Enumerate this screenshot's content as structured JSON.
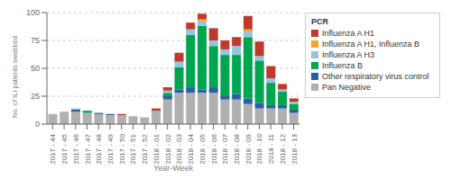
{
  "chart_data": {
    "type": "bar",
    "stacked": true,
    "xlabel": "Year-Week",
    "ylabel": "No. of ILI patients swabbed",
    "legend_title": "PCR",
    "legend": "right",
    "grid": true,
    "ylim": [
      0,
      100
    ],
    "yticks": [
      0,
      25,
      50,
      75,
      100
    ],
    "categories": [
      "2017 - 44",
      "2017 - 45",
      "2017 - 46",
      "2017 - 47",
      "2017 - 48",
      "2017 - 49",
      "2017 - 50",
      "2017 - 51",
      "2017 - 52",
      "2018 - 01",
      "2018 - 02",
      "2018 - 03",
      "2018 - 04",
      "2018 - 05",
      "2018 - 06",
      "2018 - 07",
      "2018 - 08",
      "2018 - 09",
      "2018 - 10",
      "2018 - 11",
      "2018 - 12",
      "2018 - 13"
    ],
    "series": [
      {
        "name": "Pan Negative",
        "color": "#b0b0b0",
        "values": [
          9,
          11,
          11,
          10,
          9,
          8,
          8,
          7,
          6,
          12,
          22,
          28,
          28,
          28,
          28,
          22,
          22,
          18,
          14,
          14,
          14,
          10
        ]
      },
      {
        "name": "Other respiratory virus control",
        "color": "#2b5fa5",
        "values": [
          0,
          0,
          2,
          0,
          1,
          1,
          0,
          0,
          0,
          0,
          3,
          3,
          5,
          3,
          5,
          3,
          5,
          5,
          5,
          3,
          3,
          3
        ]
      },
      {
        "name": "Influenza B",
        "color": "#00a550",
        "values": [
          0,
          0,
          0,
          2,
          0,
          0,
          0,
          0,
          0,
          0,
          3,
          20,
          47,
          57,
          37,
          37,
          35,
          55,
          38,
          20,
          12,
          5
        ]
      },
      {
        "name": "Influenza A H3",
        "color": "#92c5de",
        "values": [
          0,
          0,
          1,
          0,
          0,
          0,
          0,
          0,
          0,
          0,
          2,
          5,
          5,
          4,
          5,
          5,
          8,
          5,
          4,
          4,
          2,
          2
        ]
      },
      {
        "name": "Influenza A H1, Influenza B",
        "color": "#f5a623",
        "values": [
          0,
          0,
          0,
          0,
          0,
          0,
          0,
          0,
          0,
          0,
          0,
          0,
          0,
          2,
          0,
          0,
          0,
          2,
          0,
          0,
          0,
          0
        ]
      },
      {
        "name": "Influenza A H1",
        "color": "#c0392b",
        "values": [
          0,
          0,
          0,
          0,
          0,
          0,
          1,
          0,
          0,
          2,
          3,
          8,
          6,
          5,
          11,
          8,
          8,
          12,
          13,
          11,
          5,
          3
        ]
      }
    ]
  }
}
